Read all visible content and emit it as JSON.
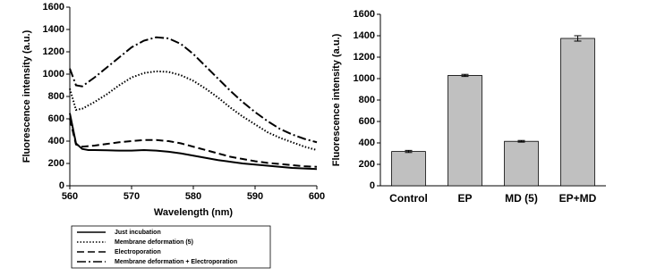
{
  "chart_data": [
    {
      "type": "line",
      "x_label": "Wavelength (nm)",
      "y_label": "Fluorescence intensity (a.u.)",
      "x": [
        560,
        561,
        562,
        563,
        564,
        566,
        568,
        570,
        572,
        574,
        576,
        578,
        580,
        582,
        584,
        586,
        588,
        590,
        592,
        594,
        596,
        598,
        600
      ],
      "series": [
        {
          "name": "Just incubation",
          "color": "#000000",
          "dash": "solid",
          "values": [
            650,
            380,
            330,
            320,
            320,
            318,
            315,
            315,
            320,
            315,
            305,
            290,
            270,
            250,
            230,
            215,
            200,
            190,
            180,
            170,
            160,
            155,
            150
          ]
        },
        {
          "name": "Membrane deformation (5)",
          "color": "#000000",
          "dash": "dotted",
          "values": [
            870,
            680,
            690,
            720,
            750,
            820,
            900,
            970,
            1010,
            1025,
            1020,
            990,
            940,
            870,
            790,
            700,
            620,
            550,
            480,
            430,
            390,
            350,
            320
          ]
        },
        {
          "name": "Electroporation",
          "color": "#000000",
          "dash": "dashed",
          "values": [
            600,
            370,
            350,
            355,
            360,
            375,
            390,
            400,
            410,
            410,
            400,
            380,
            350,
            320,
            290,
            260,
            240,
            220,
            205,
            195,
            185,
            175,
            170
          ]
        },
        {
          "name": "Membrane deformation + Electroporation",
          "color": "#000000",
          "dash": "dashdot",
          "values": [
            1050,
            900,
            890,
            930,
            970,
            1060,
            1150,
            1240,
            1300,
            1330,
            1320,
            1270,
            1180,
            1070,
            960,
            850,
            750,
            660,
            580,
            510,
            460,
            420,
            390
          ]
        }
      ],
      "xlim": [
        560,
        600
      ],
      "xticks": [
        560,
        570,
        580,
        590,
        600
      ],
      "ylim": [
        0,
        1600
      ],
      "yticks": [
        0,
        200,
        400,
        600,
        800,
        1000,
        1200,
        1400,
        1600
      ],
      "legend": "below"
    },
    {
      "type": "bar",
      "y_label": "Fluorescence intensity (a.u.)",
      "categories": [
        "Control",
        "EP",
        "MD (5)",
        "EP+MD"
      ],
      "values": [
        320,
        1030,
        415,
        1375
      ],
      "errors": [
        10,
        10,
        8,
        25
      ],
      "color": "#c0c0c0",
      "ylim": [
        0,
        1600
      ],
      "yticks": [
        0,
        200,
        400,
        600,
        800,
        1000,
        1200,
        1400,
        1600
      ]
    }
  ]
}
